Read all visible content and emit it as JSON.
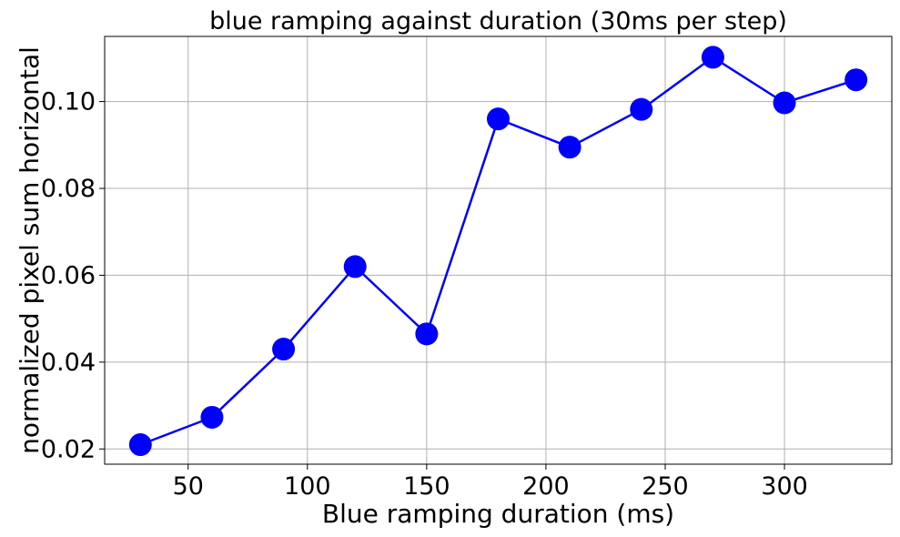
{
  "chart_data": {
    "type": "line",
    "title": "blue ramping against duration (30ms per step)",
    "xlabel": "Blue ramping duration (ms)",
    "ylabel": "normalized pixel sum horizontal",
    "xlim": [
      15,
      345
    ],
    "ylim": [
      0.0165,
      0.115
    ],
    "xticks": [
      50,
      100,
      150,
      200,
      250,
      300
    ],
    "xtick_labels": [
      "50",
      "100",
      "150",
      "200",
      "250",
      "300"
    ],
    "yticks": [
      0.02,
      0.04,
      0.06,
      0.08,
      0.1
    ],
    "ytick_labels": [
      "0.02",
      "0.04",
      "0.06",
      "0.08",
      "0.10"
    ],
    "grid": true,
    "marker": "circle",
    "color": "#0000ff",
    "series": [
      {
        "x": [
          30,
          60,
          90,
          120,
          150,
          180,
          210,
          240,
          270,
          300,
          330
        ],
        "y": [
          0.021,
          0.0273,
          0.043,
          0.062,
          0.0465,
          0.096,
          0.0895,
          0.0982,
          0.1102,
          0.0997,
          0.105
        ]
      }
    ]
  }
}
